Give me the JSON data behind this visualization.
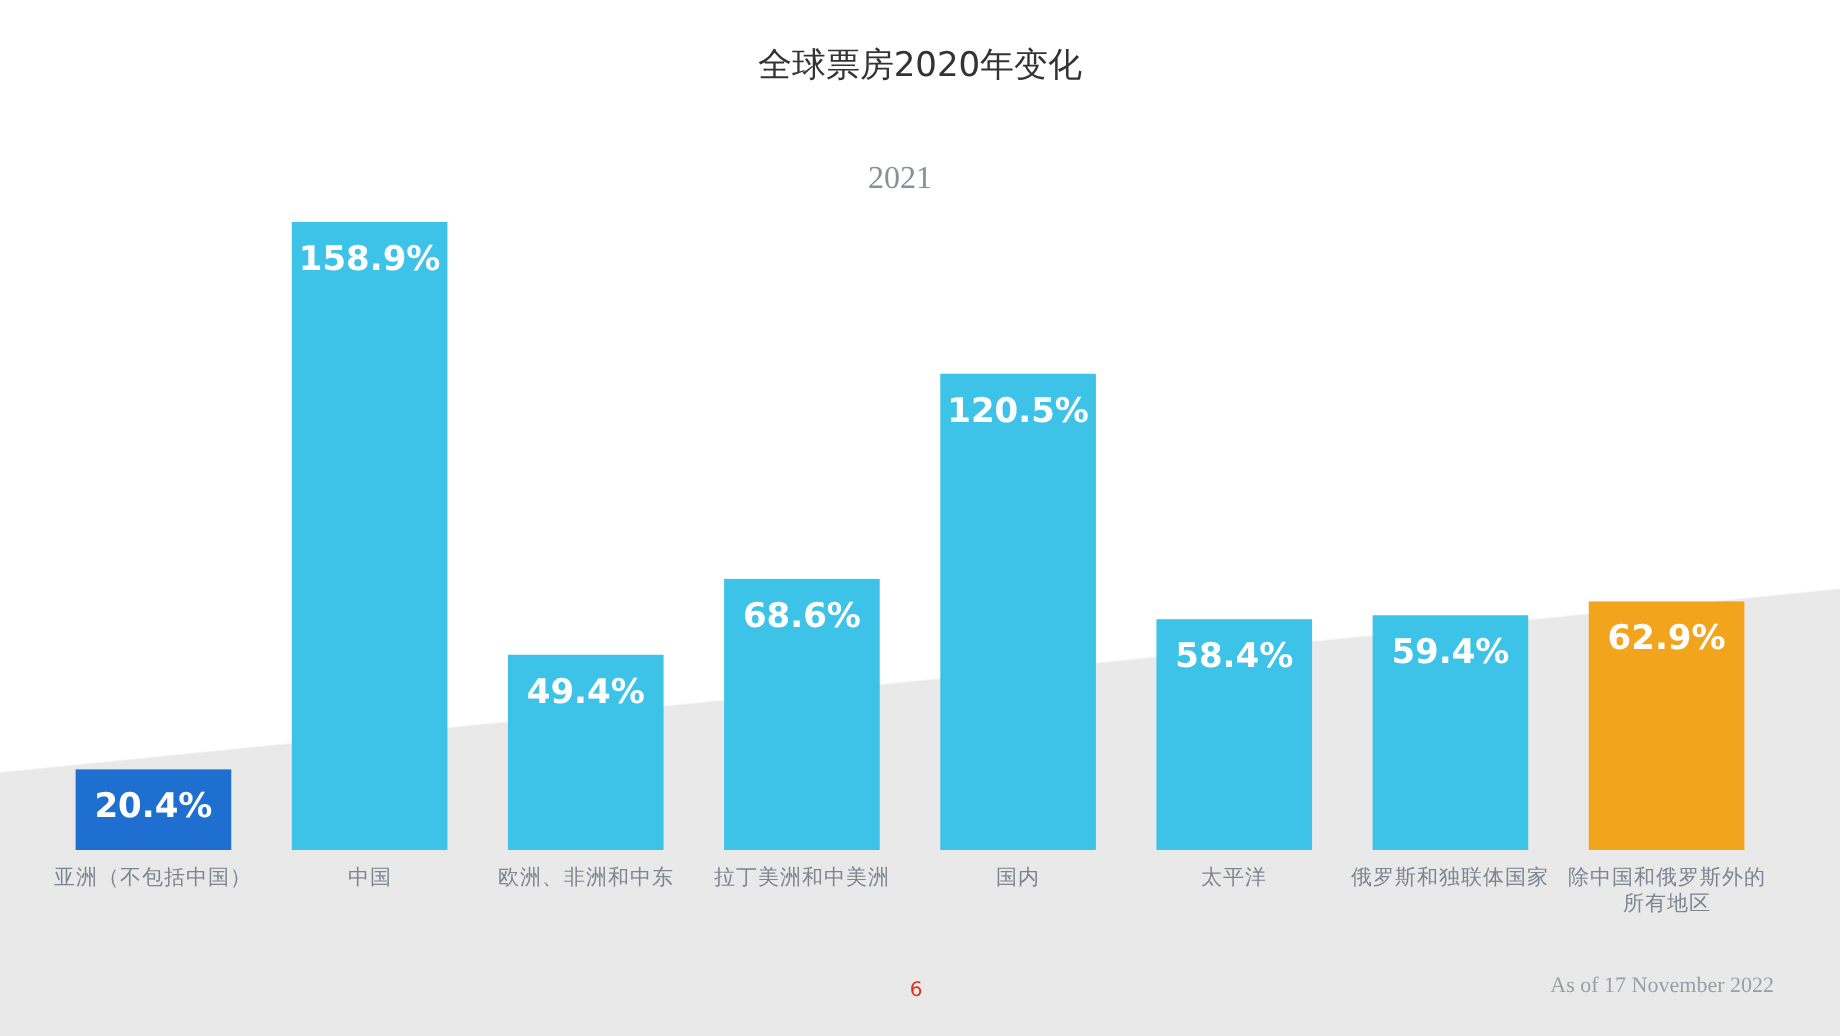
{
  "chart_data": {
    "type": "bar",
    "title": "全球票房2020年变化",
    "subtitle": "2021",
    "categories": [
      "亚洲（不包括中国）",
      "中国",
      "欧洲、非洲和中东",
      "拉丁美洲和中美洲",
      "国内",
      "太平洋",
      "俄罗斯和独联体国家",
      "除中国和俄罗斯外的所有地区"
    ],
    "values": [
      20.4,
      158.9,
      49.4,
      68.6,
      120.5,
      58.4,
      59.4,
      62.9
    ],
    "colors": [
      "#1f6fd0",
      "#3ec3e8",
      "#3ec3e8",
      "#3ec3e8",
      "#3ec3e8",
      "#3ec3e8",
      "#3ec3e8",
      "#f2a51c"
    ],
    "value_labels": [
      "20.4%",
      "158.9%",
      "49.4%",
      "68.6%",
      "120.5%",
      "58.4%",
      "59.4%",
      "62.9%"
    ],
    "annotations": [
      "6",
      "As of 17 November 2022"
    ]
  }
}
